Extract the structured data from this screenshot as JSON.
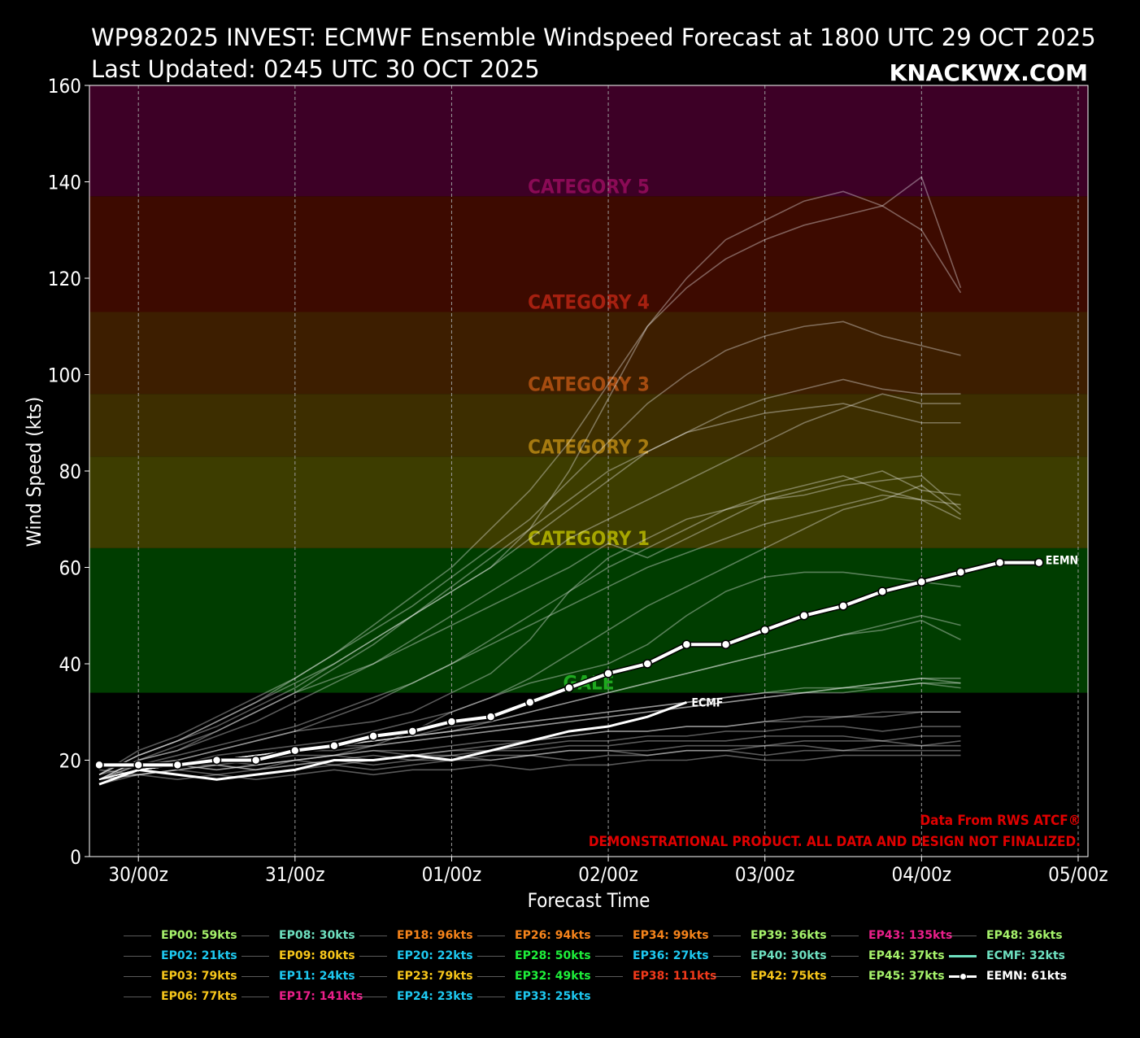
{
  "header": {
    "title_line1": "WP982025 INVEST: ECMWF Ensemble Windspeed Forecast at 1800 UTC 29 OCT 2025",
    "title_line2": "Last Updated: 0245 UTC 30 OCT 2025",
    "brand": "KNACKWX.COM"
  },
  "footer_notes": {
    "source": "Data From RWS ATCF®",
    "disclaimer": "DEMONSTRATIONAL PRODUCT. ALL DATA AND DESIGN NOT FINALIZED."
  },
  "chart_data": {
    "type": "line",
    "xlabel": "Forecast Time",
    "ylabel": "Wind Speed (kts)",
    "ylim": [
      0,
      160
    ],
    "y_ticks": [
      0,
      20,
      40,
      60,
      80,
      100,
      120,
      140,
      160
    ],
    "x_tick_labels": [
      "30/00z",
      "31/00z",
      "01/00z",
      "02/00z",
      "03/00z",
      "04/00z",
      "05/00z"
    ],
    "x_unit": "hours after 29/18z",
    "x_tick_hours": [
      6,
      30,
      54,
      78,
      102,
      126,
      150
    ],
    "xlim_hours": [
      -1.5,
      151.5
    ],
    "grid": true,
    "category_bands": [
      {
        "label": "GALE",
        "from": 34,
        "to": 64,
        "color": "#003d00",
        "label_color": "#1fa81f",
        "label_y": 36
      },
      {
        "label": "CATEGORY 1",
        "from": 64,
        "to": 83,
        "color": "#3d3d00",
        "label_color": "#a6a600",
        "label_y": 66
      },
      {
        "label": "CATEGORY 2",
        "from": 83,
        "to": 96,
        "color": "#3d2e00",
        "label_color": "#a67a10",
        "label_y": 85
      },
      {
        "label": "CATEGORY 3",
        "from": 96,
        "to": 113,
        "color": "#3d1e00",
        "label_color": "#a64c10",
        "label_y": 98
      },
      {
        "label": "CATEGORY 4",
        "from": 113,
        "to": 137,
        "color": "#3d0a00",
        "label_color": "#a62010",
        "label_y": 115
      },
      {
        "label": "CATEGORY 5",
        "from": 137,
        "to": 160,
        "color": "#3d0026",
        "label_color": "#8a0a55",
        "label_y": 139
      }
    ],
    "ensemble_members": [
      {
        "name": "EP00",
        "max": 59,
        "color": "#a6f26b",
        "values": [
          15,
          18,
          19,
          20,
          19,
          20,
          21,
          23,
          26,
          30,
          33,
          36,
          38,
          40,
          44,
          50,
          55,
          58,
          59,
          59,
          58,
          57,
          56
        ]
      },
      {
        "name": "EP02",
        "max": 21,
        "color": "#1ec8f0",
        "values": [
          15,
          17,
          16,
          17,
          16,
          17,
          18,
          17,
          18,
          18,
          19,
          18,
          19,
          19,
          20,
          20,
          21,
          20,
          20,
          21,
          21,
          21,
          21
        ]
      },
      {
        "name": "EP03",
        "max": 79,
        "color": "#f7c61b",
        "values": [
          17,
          19,
          20,
          22,
          24,
          26,
          27,
          28,
          30,
          34,
          38,
          45,
          55,
          62,
          66,
          70,
          72,
          74,
          75,
          77,
          78,
          79,
          72
        ]
      },
      {
        "name": "EP06",
        "max": 77,
        "color": "#f7c61b",
        "values": [
          16,
          18,
          19,
          21,
          22,
          23,
          24,
          26,
          28,
          30,
          33,
          37,
          42,
          47,
          52,
          56,
          60,
          64,
          68,
          72,
          74,
          77,
          71
        ]
      },
      {
        "name": "EP08",
        "max": 30,
        "color": "#6ee0c0",
        "values": [
          18,
          17,
          18,
          19,
          18,
          20,
          21,
          22,
          21,
          22,
          23,
          24,
          25,
          26,
          26,
          27,
          27,
          28,
          28,
          29,
          29,
          30,
          30
        ]
      },
      {
        "name": "EP09",
        "max": 80,
        "color": "#f7c61b",
        "values": [
          16,
          20,
          22,
          26,
          30,
          34,
          37,
          40,
          44,
          48,
          52,
          56,
          60,
          65,
          62,
          66,
          70,
          74,
          76,
          78,
          80,
          76,
          75
        ]
      },
      {
        "name": "EP11",
        "max": 24,
        "color": "#1ec8f0",
        "values": [
          16,
          17,
          18,
          17,
          18,
          19,
          20,
          19,
          20,
          20,
          21,
          21,
          22,
          22,
          22,
          23,
          23,
          23,
          24,
          24,
          24,
          23,
          24
        ]
      },
      {
        "name": "EP17",
        "max": 141,
        "color": "#ea1f8a",
        "values": [
          17,
          21,
          24,
          28,
          32,
          36,
          40,
          45,
          50,
          55,
          60,
          68,
          80,
          95,
          110,
          120,
          128,
          132,
          136,
          138,
          135,
          141,
          118
        ]
      },
      {
        "name": "EP18",
        "max": 96,
        "color": "#f7841b",
        "values": [
          16,
          20,
          22,
          25,
          28,
          32,
          36,
          40,
          45,
          50,
          55,
          60,
          66,
          70,
          74,
          78,
          82,
          86,
          90,
          93,
          96,
          94,
          94
        ]
      },
      {
        "name": "EP20",
        "max": 22,
        "color": "#1ec8f0",
        "values": [
          15,
          18,
          17,
          16,
          17,
          18,
          19,
          18,
          19,
          20,
          20,
          21,
          20,
          21,
          21,
          22,
          22,
          21,
          22,
          22,
          22,
          22,
          22
        ]
      },
      {
        "name": "EP23",
        "max": 79,
        "color": "#f7c61b",
        "values": [
          16,
          19,
          20,
          22,
          24,
          26,
          29,
          32,
          36,
          40,
          45,
          50,
          55,
          60,
          64,
          68,
          72,
          75,
          77,
          79,
          76,
          74,
          70
        ]
      },
      {
        "name": "EP24",
        "max": 23,
        "color": "#1ec8f0",
        "values": [
          16,
          18,
          19,
          18,
          19,
          20,
          19,
          20,
          21,
          21,
          20,
          21,
          22,
          22,
          21,
          22,
          22,
          23,
          23,
          22,
          23,
          23,
          23
        ]
      },
      {
        "name": "EP26",
        "max": 94,
        "color": "#f7841b",
        "values": [
          16,
          20,
          23,
          26,
          30,
          34,
          39,
          44,
          50,
          56,
          62,
          68,
          74,
          80,
          84,
          88,
          90,
          92,
          93,
          94,
          92,
          90,
          90
        ]
      },
      {
        "name": "EP28",
        "max": 50,
        "color": "#1ef03a",
        "values": [
          16,
          18,
          19,
          20,
          21,
          22,
          23,
          24,
          25,
          26,
          28,
          30,
          32,
          34,
          36,
          38,
          40,
          42,
          44,
          46,
          48,
          50,
          48
        ]
      },
      {
        "name": "EP32",
        "max": 49,
        "color": "#1ef03a",
        "values": [
          16,
          18,
          19,
          20,
          21,
          22,
          23,
          24,
          25,
          27,
          28,
          30,
          32,
          34,
          36,
          38,
          40,
          42,
          44,
          46,
          47,
          49,
          45
        ]
      },
      {
        "name": "EP33",
        "max": 25,
        "color": "#1ec8f0",
        "values": [
          16,
          17,
          18,
          19,
          18,
          19,
          20,
          21,
          20,
          21,
          22,
          22,
          23,
          23,
          24,
          24,
          24,
          25,
          25,
          25,
          24,
          25,
          25
        ]
      },
      {
        "name": "EP34",
        "max": 99,
        "color": "#f7841b",
        "values": [
          17,
          21,
          24,
          27,
          31,
          35,
          40,
          45,
          50,
          55,
          60,
          66,
          72,
          78,
          84,
          88,
          92,
          95,
          97,
          99,
          97,
          96,
          96
        ]
      },
      {
        "name": "EP36",
        "max": 27,
        "color": "#1ec8f0",
        "values": [
          16,
          18,
          19,
          18,
          19,
          20,
          21,
          20,
          21,
          22,
          22,
          23,
          24,
          24,
          25,
          25,
          26,
          26,
          27,
          27,
          26,
          27,
          27
        ]
      },
      {
        "name": "EP38",
        "max": 111,
        "color": "#f23a1b",
        "values": [
          17,
          22,
          25,
          29,
          33,
          37,
          42,
          47,
          52,
          58,
          64,
          70,
          78,
          86,
          94,
          100,
          105,
          108,
          110,
          111,
          108,
          106,
          104
        ]
      },
      {
        "name": "EP39",
        "max": 36,
        "color": "#a6f26b",
        "values": [
          16,
          18,
          19,
          20,
          21,
          22,
          23,
          24,
          25,
          26,
          27,
          28,
          29,
          30,
          31,
          32,
          33,
          34,
          34,
          35,
          35,
          36,
          36
        ]
      },
      {
        "name": "EP40",
        "max": 30,
        "color": "#6ee0c0",
        "values": [
          16,
          18,
          19,
          19,
          20,
          21,
          21,
          22,
          22,
          23,
          24,
          24,
          25,
          26,
          26,
          27,
          27,
          28,
          29,
          29,
          30,
          30,
          30
        ]
      },
      {
        "name": "EP42",
        "max": 75,
        "color": "#f7c61b",
        "values": [
          16,
          19,
          21,
          23,
          25,
          27,
          30,
          33,
          36,
          40,
          44,
          48,
          52,
          56,
          60,
          63,
          66,
          69,
          71,
          73,
          75,
          74,
          73
        ]
      },
      {
        "name": "EP43",
        "max": 135,
        "color": "#ea1f8a",
        "values": [
          17,
          21,
          24,
          28,
          32,
          37,
          42,
          48,
          54,
          60,
          68,
          76,
          86,
          98,
          110,
          118,
          124,
          128,
          131,
          133,
          135,
          130,
          117
        ]
      },
      {
        "name": "EP44",
        "max": 37,
        "color": "#a6f26b",
        "values": [
          16,
          18,
          19,
          20,
          21,
          22,
          23,
          24,
          25,
          26,
          27,
          28,
          29,
          30,
          31,
          32,
          33,
          34,
          35,
          35,
          36,
          37,
          37
        ]
      },
      {
        "name": "EP45",
        "max": 37,
        "color": "#a6f26b",
        "values": [
          16,
          18,
          19,
          20,
          21,
          22,
          22,
          23,
          24,
          25,
          26,
          27,
          28,
          29,
          30,
          31,
          32,
          33,
          34,
          35,
          36,
          37,
          36
        ]
      },
      {
        "name": "EP48",
        "max": 36,
        "color": "#a6f26b",
        "values": [
          16,
          18,
          19,
          20,
          21,
          22,
          23,
          23,
          24,
          25,
          26,
          27,
          28,
          29,
          30,
          31,
          32,
          33,
          34,
          34,
          35,
          36,
          35
        ]
      }
    ],
    "ecmf": {
      "name": "ECMF",
      "max": 32,
      "color": "#6ee0c0",
      "hours": [
        0,
        6,
        12,
        18,
        24,
        30,
        36,
        42,
        48,
        54,
        60,
        66,
        72,
        78,
        84,
        90
      ],
      "values": [
        15,
        18,
        17,
        16,
        17,
        18,
        20,
        20,
        21,
        20,
        22,
        24,
        26,
        27,
        29,
        32
      ]
    },
    "eemn": {
      "name": "EEMN",
      "max": 61,
      "color": "#ffffff",
      "hours": [
        0,
        6,
        12,
        18,
        24,
        30,
        36,
        42,
        48,
        54,
        60,
        66,
        72,
        78,
        84,
        90,
        96,
        102,
        108,
        114,
        120,
        126,
        132,
        138,
        144
      ],
      "values": [
        19,
        19,
        19,
        20,
        20,
        22,
        23,
        25,
        26,
        28,
        29,
        32,
        35,
        38,
        40,
        44,
        44,
        47,
        50,
        52,
        55,
        57,
        59,
        61,
        61
      ]
    },
    "legend": [
      [
        "EP00: 59kts",
        "EP02: 21kts",
        "EP03: 79kts",
        "EP06: 77kts"
      ],
      [
        "EP08: 30kts",
        "EP09: 80kts",
        "EP11: 24kts",
        "EP17: 141kts"
      ],
      [
        "EP18: 96kts",
        "EP20: 22kts",
        "EP23: 79kts",
        "EP24: 23kts"
      ],
      [
        "EP26: 94kts",
        "EP28: 50kts",
        "EP32: 49kts",
        "EP33: 25kts"
      ],
      [
        "EP34: 99kts",
        "EP36: 27kts",
        "EP38: 111kts"
      ],
      [
        "EP39: 36kts",
        "EP40: 30kts",
        "EP42: 75kts"
      ],
      [
        "EP43: 135kts",
        "EP44: 37kts",
        "EP45: 37kts"
      ],
      [
        "EP48: 36kts",
        "ECMF: 32kts",
        "EEMN: 61kts"
      ]
    ],
    "legend_colors": [
      [
        "#a6f26b",
        "#1ec8f0",
        "#f7c61b",
        "#f7c61b"
      ],
      [
        "#6ee0c0",
        "#f7c61b",
        "#1ec8f0",
        "#ea1f8a"
      ],
      [
        "#f7841b",
        "#1ec8f0",
        "#f7c61b",
        "#1ec8f0"
      ],
      [
        "#f7841b",
        "#1ef03a",
        "#1ef03a",
        "#1ec8f0"
      ],
      [
        "#f7841b",
        "#1ec8f0",
        "#f23a1b"
      ],
      [
        "#a6f26b",
        "#6ee0c0",
        "#f7c61b"
      ],
      [
        "#ea1f8a",
        "#a6f26b",
        "#a6f26b"
      ],
      [
        "#a6f26b",
        "#6ee0c0",
        "#ffffff"
      ]
    ]
  }
}
